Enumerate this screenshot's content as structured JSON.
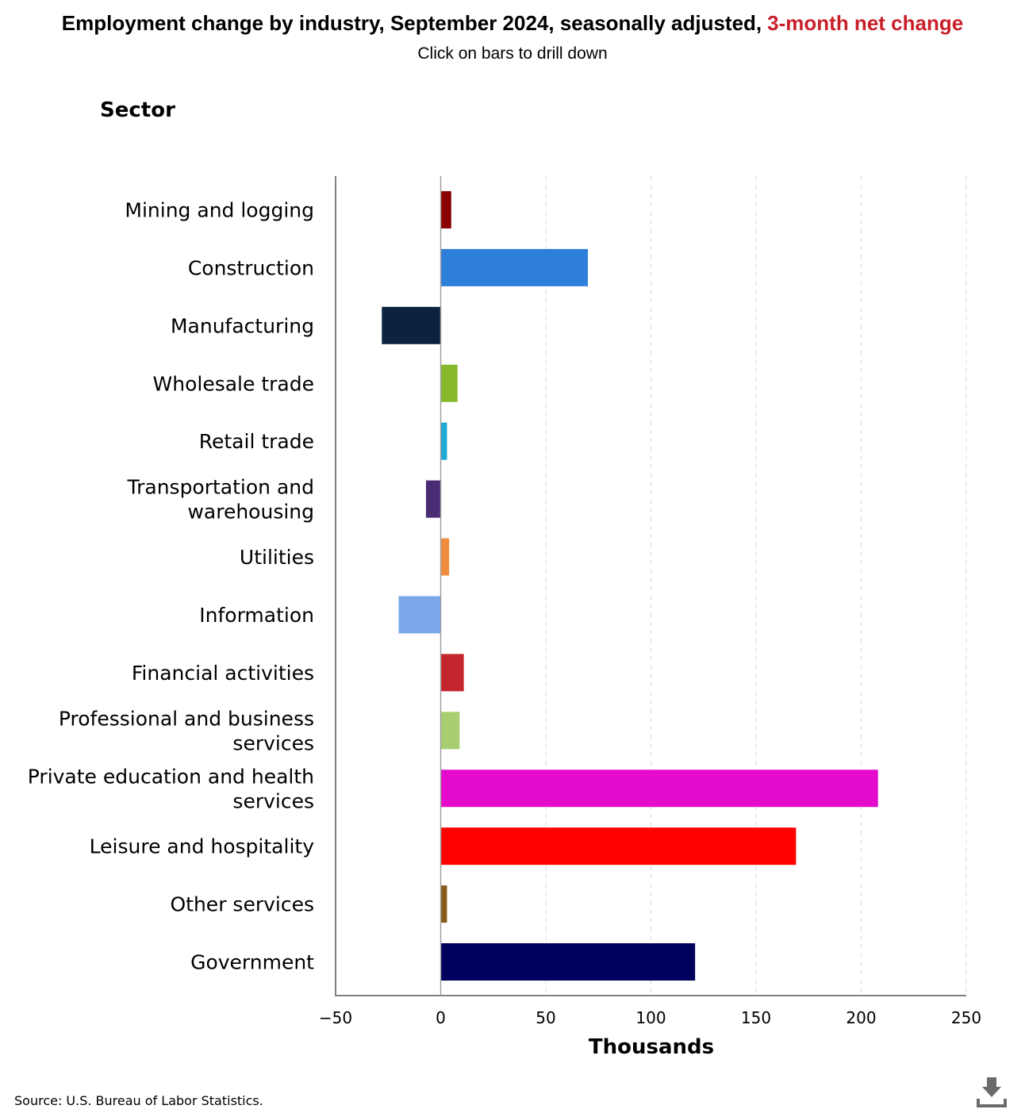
{
  "header": {
    "title": "Employment change by industry, September 2024, seasonally adjusted,",
    "title_highlight": "3-month net change",
    "highlight_color": "#c8202a",
    "subtitle": "Click on bars to drill down"
  },
  "footer": {
    "source": "Source: U.S. Bureau of Labor Statistics.",
    "download_icon": "download-icon"
  },
  "chart_data": {
    "type": "bar",
    "orientation": "horizontal",
    "ylabel": "Sector",
    "xlabel": "Thousands",
    "xlim": [
      -50,
      250
    ],
    "xticks": [
      -50,
      0,
      50,
      100,
      150,
      200,
      250
    ],
    "xtick_labels": [
      "−50",
      "0",
      "50",
      "100",
      "150",
      "200",
      "250"
    ],
    "grid": "vertical dashed",
    "categories": [
      [
        "Mining and logging"
      ],
      [
        "Construction"
      ],
      [
        "Manufacturing"
      ],
      [
        "Wholesale trade"
      ],
      [
        "Retail trade"
      ],
      [
        "Transportation and",
        "warehousing"
      ],
      [
        "Utilities"
      ],
      [
        "Information"
      ],
      [
        "Financial activities"
      ],
      [
        "Professional and business",
        "services"
      ],
      [
        "Private education and health",
        "services"
      ],
      [
        "Leisure and hospitality"
      ],
      [
        "Other services"
      ],
      [
        "Government"
      ]
    ],
    "values": [
      5,
      70,
      -28,
      8,
      3,
      -7,
      4,
      -20,
      11,
      9,
      208,
      169,
      3,
      121
    ],
    "colors": [
      "#8b0000",
      "#2e7fd9",
      "#0d2240",
      "#86b92a",
      "#1fa8d0",
      "#4a2c75",
      "#f08c3c",
      "#7ba7e8",
      "#c4262e",
      "#a7cf72",
      "#e40bcc",
      "#ff0000",
      "#8a5a1a",
      "#00005f"
    ]
  }
}
